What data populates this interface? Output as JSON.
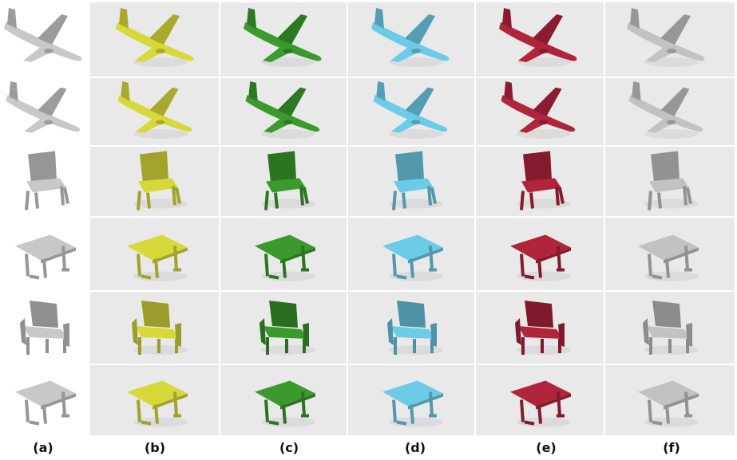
{
  "column_labels": [
    "(a)",
    "(b)",
    "(c)",
    "(d)",
    "(e)",
    "(f)"
  ],
  "rows": [
    {
      "object": "airplane-icon"
    },
    {
      "object": "airplane-icon"
    },
    {
      "object": "chair-icon"
    },
    {
      "object": "table-icon"
    },
    {
      "object": "armchair-icon"
    },
    {
      "object": "table-icon"
    }
  ],
  "colors": {
    "column_a": "#c8c8c8",
    "column_b": "#d7d93a",
    "column_c": "#3a9a2b",
    "column_d": "#6ccbe6",
    "column_e": "#b0243c",
    "column_f": "#c2c2c2"
  }
}
